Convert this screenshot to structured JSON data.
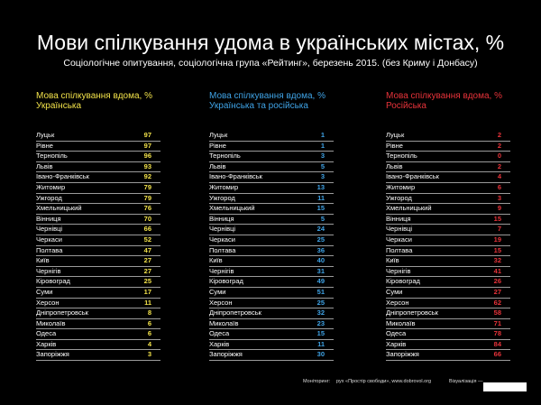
{
  "title": "Мови спілкування удома в українських містах, %",
  "subtitle": "Соціологічне опитування, соціологічна група «Рейтинг», березень 2015. (без Криму і Донбасу)",
  "colors": {
    "ukrainian": "#f2e24a",
    "both": "#3fa3e6",
    "russian": "#e8333a"
  },
  "tables": [
    {
      "header1": "Мова спілкування вдома, %",
      "header2": "Українська",
      "color": "#f2e24a",
      "rows": [
        [
          "Луцьк",
          "97"
        ],
        [
          "Рівне",
          "97"
        ],
        [
          "Тернопіль",
          "96"
        ],
        [
          "Львів",
          "93"
        ],
        [
          "Івано-Франківськ",
          "92"
        ],
        [
          "Житомир",
          "79"
        ],
        [
          "Ужгород",
          "79"
        ],
        [
          "Хмельницький",
          "76"
        ],
        [
          "Вінниця",
          "70"
        ],
        [
          "Чернівці",
          "66"
        ],
        [
          "Черкаси",
          "52"
        ],
        [
          "Полтава",
          "47"
        ],
        [
          "Київ",
          "27"
        ],
        [
          "Чернігів",
          "27"
        ],
        [
          "Кіровоград",
          "25"
        ],
        [
          "Суми",
          "17"
        ],
        [
          "Херсон",
          "11"
        ],
        [
          "Дніпропетровськ",
          "8"
        ],
        [
          "Миколаїв",
          "6"
        ],
        [
          "Одеса",
          "6"
        ],
        [
          "Харків",
          "4"
        ],
        [
          "Запоріжжя",
          "3"
        ]
      ]
    },
    {
      "header1": "Мова спілкування вдома, %",
      "header2": "Українська та російська",
      "color": "#3fa3e6",
      "rows": [
        [
          "Луцьк",
          "1"
        ],
        [
          "Рівне",
          "1"
        ],
        [
          "Тернопіль",
          "3"
        ],
        [
          "Львів",
          "5"
        ],
        [
          "Івано-Франківськ",
          "3"
        ],
        [
          "Житомир",
          "13"
        ],
        [
          "Ужгород",
          "11"
        ],
        [
          "Хмельницький",
          "15"
        ],
        [
          "Вінниця",
          "5"
        ],
        [
          "Чернівці",
          "24"
        ],
        [
          "Черкаси",
          "25"
        ],
        [
          "Полтава",
          "36"
        ],
        [
          "Київ",
          "40"
        ],
        [
          "Чернігів",
          "31"
        ],
        [
          "Кіровоград",
          "49"
        ],
        [
          "Суми",
          "51"
        ],
        [
          "Херсон",
          "25"
        ],
        [
          "Дніпропетровськ",
          "32"
        ],
        [
          "Миколаїв",
          "23"
        ],
        [
          "Одеса",
          "15"
        ],
        [
          "Харків",
          "11"
        ],
        [
          "Запоріжжя",
          "30"
        ]
      ]
    },
    {
      "header1": "Мова спілкування вдома, %",
      "header2": "Російська",
      "color": "#e8333a",
      "rows": [
        [
          "Луцьк",
          "2"
        ],
        [
          "Рівне",
          "2"
        ],
        [
          "Тернопіль",
          "0"
        ],
        [
          "Львів",
          "2"
        ],
        [
          "Івано-Франківськ",
          "4"
        ],
        [
          "Житомир",
          "6"
        ],
        [
          "Ужгород",
          "3"
        ],
        [
          "Хмельницький",
          "9"
        ],
        [
          "Вінниця",
          "15"
        ],
        [
          "Чернівці",
          "7"
        ],
        [
          "Черкаси",
          "19"
        ],
        [
          "Полтава",
          "15"
        ],
        [
          "Київ",
          "32"
        ],
        [
          "Чернігів",
          "41"
        ],
        [
          "Кіровоград",
          "26"
        ],
        [
          "Суми",
          "27"
        ],
        [
          "Херсон",
          "62"
        ],
        [
          "Дніпропетровськ",
          "58"
        ],
        [
          "Миколаїв",
          "71"
        ],
        [
          "Одеса",
          "78"
        ],
        [
          "Харків",
          "84"
        ],
        [
          "Запоріжжя",
          "66"
        ]
      ]
    }
  ],
  "footer": {
    "monitoring_label": "Моніторинг:",
    "monitoring_value": "рух «Простір свободи», www.dobrovol.org",
    "visualization_label": "Візуалізація —"
  }
}
